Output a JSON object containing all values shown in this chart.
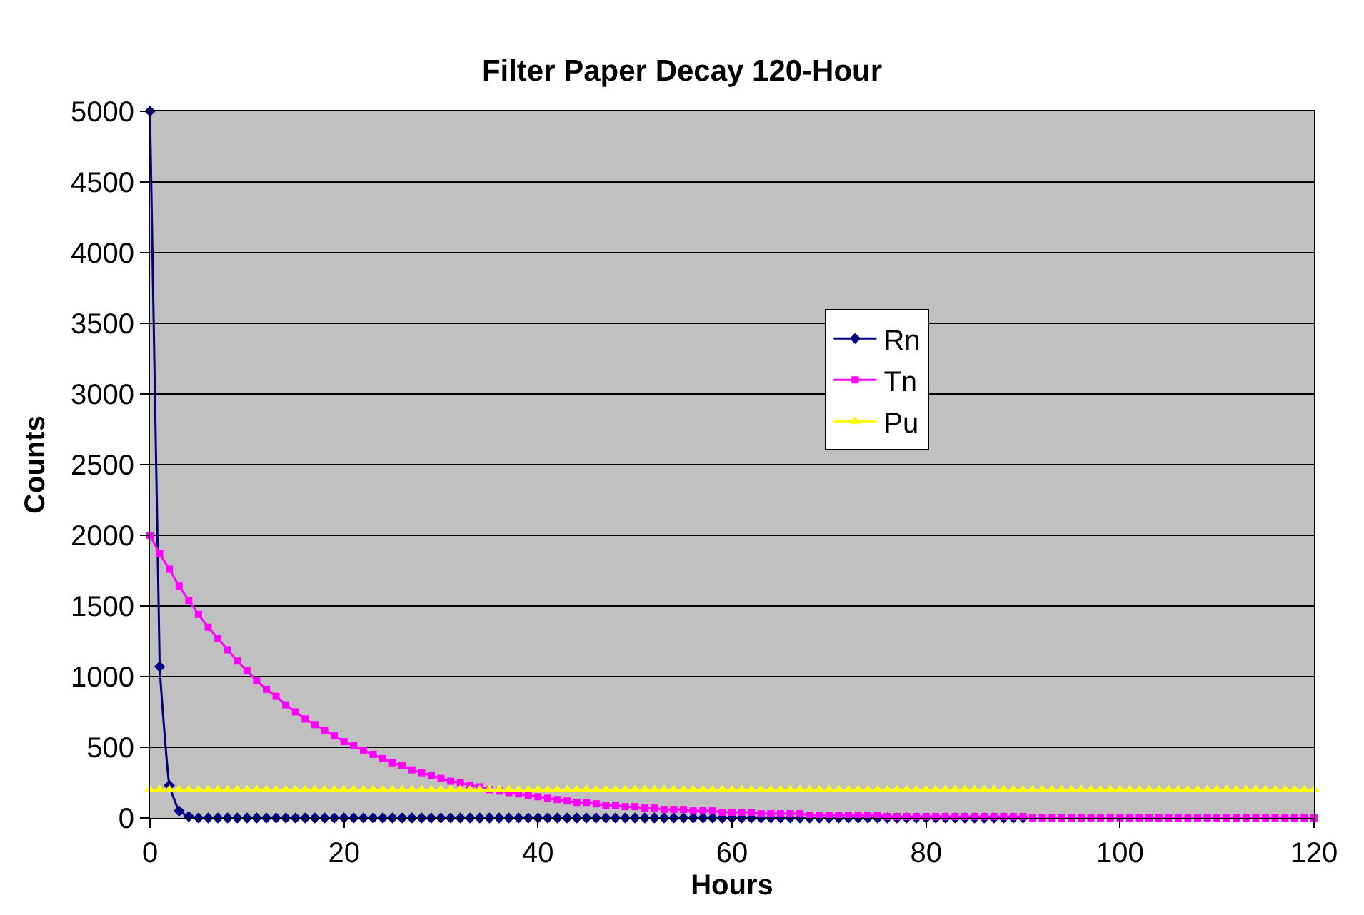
{
  "chart_data": {
    "type": "line",
    "title": "Filter Paper Decay 120-Hour",
    "xlabel": "Hours",
    "ylabel": "Counts",
    "x": [
      0,
      1,
      2,
      3,
      4,
      5,
      6,
      7,
      8,
      9,
      10,
      11,
      12,
      13,
      14,
      15,
      16,
      17,
      18,
      19,
      20,
      21,
      22,
      23,
      24,
      25,
      26,
      27,
      28,
      29,
      30,
      31,
      32,
      33,
      34,
      35,
      36,
      37,
      38,
      39,
      40,
      41,
      42,
      43,
      44,
      45,
      46,
      47,
      48,
      49,
      50,
      51,
      52,
      53,
      54,
      55,
      56,
      57,
      58,
      59,
      60,
      61,
      62,
      63,
      64,
      65,
      66,
      67,
      68,
      69,
      70,
      71,
      72,
      73,
      74,
      75,
      76,
      77,
      78,
      79,
      80,
      81,
      82,
      83,
      84,
      85,
      86,
      87,
      88,
      89,
      90,
      91,
      92,
      93,
      94,
      95,
      96,
      97,
      98,
      99,
      100,
      101,
      102,
      103,
      104,
      105,
      106,
      107,
      108,
      109,
      110,
      111,
      112,
      113,
      114,
      115,
      116,
      117,
      118,
      119,
      120
    ],
    "series": [
      {
        "name": "Rn",
        "color": "#000080",
        "marker": "diamond",
        "values": [
          5000,
          1070,
          230,
          50,
          10,
          0,
          0,
          0,
          0,
          0,
          0,
          0,
          0,
          0,
          0,
          0,
          0,
          0,
          0,
          0,
          0,
          0,
          0,
          0,
          0,
          0,
          0,
          0,
          0,
          0,
          0,
          0,
          0,
          0,
          0,
          0,
          0,
          0,
          0,
          0,
          0,
          0,
          0,
          0,
          0,
          0,
          0,
          0,
          0,
          0,
          0,
          0,
          0,
          0,
          0,
          0,
          0,
          0,
          0,
          0,
          0,
          0,
          0,
          0,
          0,
          0,
          0,
          0,
          0,
          0,
          0,
          0,
          0,
          0,
          0,
          0,
          0,
          0,
          0,
          0,
          0,
          0,
          0,
          0,
          0,
          0,
          0,
          0,
          0,
          0,
          0,
          null,
          null,
          null,
          null,
          null,
          null,
          null,
          null,
          null,
          null,
          null,
          null,
          null,
          null,
          null,
          null,
          null,
          null,
          null,
          null,
          null,
          null,
          null,
          null,
          null,
          null,
          null,
          null,
          null,
          null
        ]
      },
      {
        "name": "Tn",
        "color": "#ff00ff",
        "marker": "square",
        "values": [
          2000,
          1870,
          1760,
          1640,
          1540,
          1440,
          1350,
          1270,
          1190,
          1110,
          1040,
          970,
          910,
          860,
          800,
          750,
          700,
          660,
          620,
          580,
          540,
          510,
          480,
          450,
          420,
          390,
          370,
          340,
          320,
          300,
          280,
          260,
          250,
          230,
          220,
          200,
          190,
          180,
          170,
          160,
          150,
          140,
          130,
          120,
          110,
          110,
          100,
          90,
          90,
          80,
          80,
          70,
          70,
          60,
          60,
          60,
          50,
          50,
          50,
          40,
          40,
          40,
          40,
          30,
          30,
          30,
          30,
          30,
          20,
          20,
          20,
          20,
          20,
          20,
          20,
          20,
          10,
          10,
          10,
          10,
          10,
          10,
          10,
          10,
          10,
          10,
          10,
          10,
          10,
          10,
          10,
          0,
          0,
          0,
          0,
          0,
          0,
          0,
          0,
          0,
          0,
          0,
          0,
          0,
          0,
          0,
          0,
          0,
          0,
          0,
          0,
          0,
          0,
          0,
          0,
          0,
          0,
          0,
          0,
          0,
          0
        ]
      },
      {
        "name": "Pu",
        "color": "#ffff00",
        "marker": "triangle",
        "values": [
          200,
          200,
          200,
          200,
          200,
          200,
          200,
          200,
          200,
          200,
          200,
          200,
          200,
          200,
          200,
          200,
          200,
          200,
          200,
          200,
          200,
          200,
          200,
          200,
          200,
          200,
          200,
          200,
          200,
          200,
          200,
          200,
          200,
          200,
          200,
          200,
          200,
          200,
          200,
          200,
          200,
          200,
          200,
          200,
          200,
          200,
          200,
          200,
          200,
          200,
          200,
          200,
          200,
          200,
          200,
          200,
          200,
          200,
          200,
          200,
          200,
          200,
          200,
          200,
          200,
          200,
          200,
          200,
          200,
          200,
          200,
          200,
          200,
          200,
          200,
          200,
          200,
          200,
          200,
          200,
          200,
          200,
          200,
          200,
          200,
          200,
          200,
          200,
          200,
          200,
          200,
          200,
          200,
          200,
          200,
          200,
          200,
          200,
          200,
          200,
          200,
          200,
          200,
          200,
          200,
          200,
          200,
          200,
          200,
          200,
          200,
          200,
          200,
          200,
          200,
          200,
          200,
          200,
          200,
          200,
          200
        ]
      }
    ],
    "xlim": [
      0,
      120
    ],
    "xticks": [
      0,
      20,
      40,
      60,
      80,
      100,
      120
    ],
    "ylim": [
      0,
      5000
    ],
    "yticks": [
      0,
      500,
      1000,
      1500,
      2000,
      2500,
      3000,
      3500,
      4000,
      4500,
      5000
    ],
    "grid": "y",
    "legend": "right",
    "line_style": "solid"
  }
}
